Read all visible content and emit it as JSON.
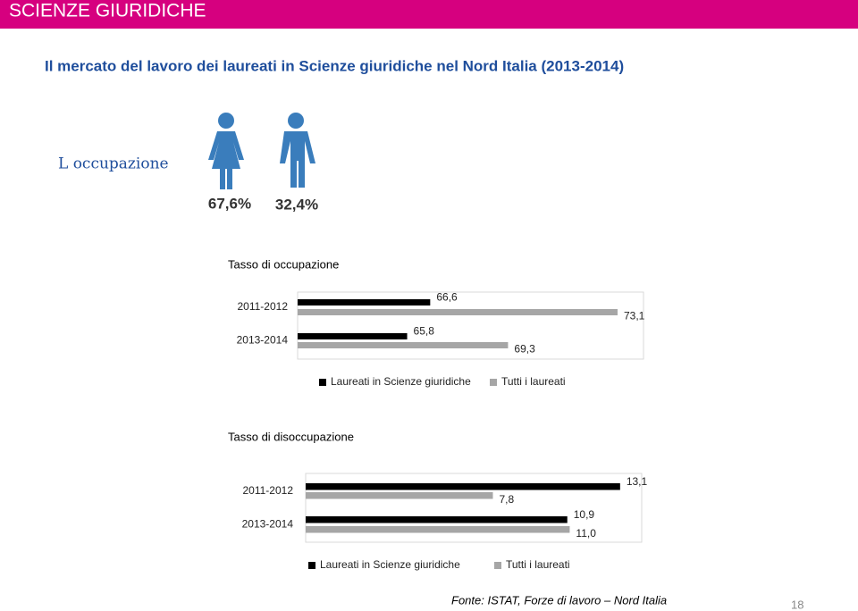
{
  "header": "SCIENZE GIURIDICHE",
  "title": "Il mercato del lavoro dei laureati in Scienze giuridiche nel Nord Italia (2013-2014)",
  "occupazione": {
    "label": "L occupazione",
    "shares": [
      "67,6%",
      "32,4%"
    ]
  },
  "chart_data": [
    {
      "type": "hbar",
      "title": "Tasso di occupazione",
      "categories": [
        "2011-2012",
        "2013-2014"
      ],
      "series": [
        {
          "name": "Laureati in Scienze giuridiche",
          "color": "#000000",
          "values": [
            66.6,
            65.8
          ],
          "value_labels": [
            "66,6",
            "65,8"
          ]
        },
        {
          "name": "Tutti i laureati",
          "color": "#a6a6a6",
          "values": [
            73.1,
            69.3
          ],
          "value_labels": [
            "73,1",
            "69,3"
          ]
        }
      ],
      "xlim": [
        62,
        74
      ],
      "legend": "bottom"
    },
    {
      "type": "hbar",
      "title": "Tasso di disoccupazione",
      "categories": [
        "2011-2012",
        "2013-2014"
      ],
      "series": [
        {
          "name": "Laureati in Scienze giuridiche",
          "color": "#000000",
          "values": [
            13.1,
            10.9
          ],
          "value_labels": [
            "13,1",
            "10,9"
          ]
        },
        {
          "name": "Tutti i laureati",
          "color": "#a6a6a6",
          "values": [
            7.8,
            11.0
          ],
          "value_labels": [
            "7,8",
            "11,0"
          ]
        }
      ],
      "xlim": [
        0,
        14
      ],
      "legend": "bottom"
    }
  ],
  "source": "Fonte: ISTAT, Forze di lavoro – Nord Italia",
  "page": "18"
}
